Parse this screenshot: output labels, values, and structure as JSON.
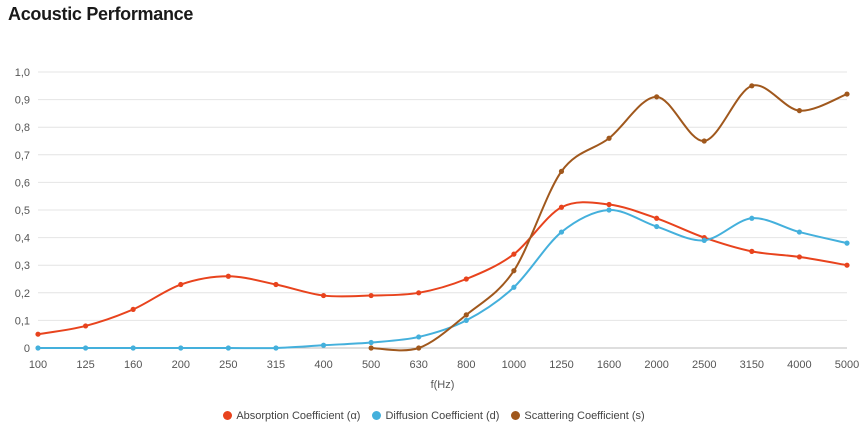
{
  "title": "Acoustic Performance",
  "chart_data": {
    "type": "line",
    "title": "Acoustic Performance",
    "xlabel": "f(Hz)",
    "ylabel": "",
    "ylim": [
      0,
      1.0
    ],
    "grid": true,
    "legend_position": "bottom",
    "categories": [
      "100",
      "125",
      "160",
      "200",
      "250",
      "315",
      "400",
      "500",
      "630",
      "800",
      "1000",
      "1250",
      "1600",
      "2000",
      "2500",
      "3150",
      "4000",
      "5000"
    ],
    "y_ticks": [
      "0",
      "0,1",
      "0,2",
      "0,3",
      "0,4",
      "0,5",
      "0,6",
      "0,7",
      "0,8",
      "0,9",
      "1,0"
    ],
    "series": [
      {
        "name": "Absorption Coefficient (α)",
        "color": "#e8431d",
        "values": [
          0.05,
          0.08,
          0.14,
          0.23,
          0.26,
          0.23,
          0.19,
          0.19,
          0.2,
          0.25,
          0.34,
          0.51,
          0.52,
          0.47,
          0.4,
          0.35,
          0.33,
          0.3
        ]
      },
      {
        "name": "Diffusion Coefficient (d)",
        "color": "#44b0dc",
        "values": [
          0,
          0,
          0,
          0,
          0,
          0,
          0.01,
          0.02,
          0.04,
          0.1,
          0.22,
          0.42,
          0.5,
          0.44,
          0.39,
          0.47,
          0.42,
          0.38
        ]
      },
      {
        "name": "Scattering Coefficient (s)",
        "color": "#a0581d",
        "values": [
          null,
          null,
          null,
          null,
          null,
          null,
          null,
          0,
          0,
          0.12,
          0.28,
          0.64,
          0.76,
          0.91,
          0.75,
          0.95,
          0.86,
          0.92
        ]
      }
    ]
  }
}
